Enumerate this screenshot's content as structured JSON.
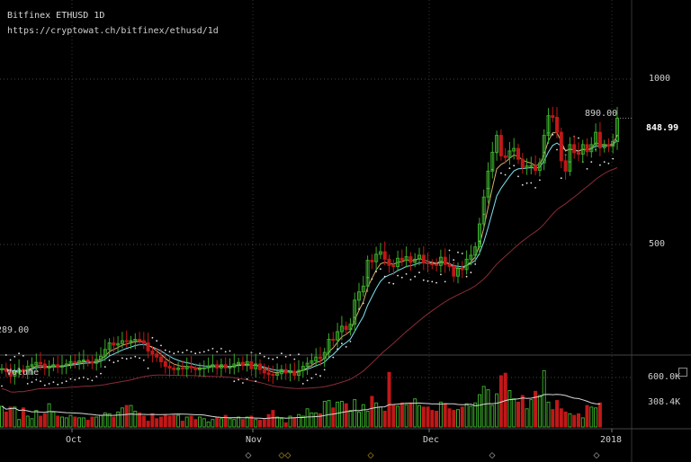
{
  "header": {
    "title": "Bitfinex ETHUSD 1D",
    "url": "https://cryptowat.ch/bitfinex/ethusd/1d"
  },
  "axis": {
    "price_ticks": [
      "1000",
      "500"
    ],
    "volume_label": "Volume",
    "volume_ticks": [
      "600.0K",
      "308.4K"
    ],
    "x_ticks": [
      "Oct",
      "Nov",
      "Dec",
      "2018"
    ],
    "last_price_label": "848.99",
    "high_label": "890.00",
    "low_label": "289.00"
  },
  "colors": {
    "up": "#3aa82a",
    "down": "#c01818",
    "ema_fast": "#d8b070",
    "ema_slow": "#7fe0f0",
    "long_ma": "#8a2c38"
  },
  "chart_data": [
    {
      "type": "candlestick",
      "title": "Bitfinex ETHUSD 1D",
      "scale": "log",
      "y_ticks": [
        500,
        1000
      ],
      "x_ticks": [
        "Oct",
        "Nov",
        "Dec",
        "2018"
      ],
      "grid": true,
      "series_close": [
        297,
        294,
        288,
        292,
        296,
        293,
        300,
        302,
        305,
        303,
        298,
        300,
        302,
        299,
        301,
        303,
        306,
        305,
        307,
        308,
        306,
        304,
        309,
        313,
        322,
        331,
        328,
        330,
        334,
        333,
        334,
        336,
        334,
        331,
        320,
        316,
        312,
        306,
        300,
        298,
        296,
        298,
        297,
        300,
        298,
        296,
        297,
        298,
        300,
        302,
        298,
        302,
        298,
        299,
        303,
        305,
        301,
        306,
        297,
        303,
        296,
        292,
        290,
        289,
        291,
        296,
        292,
        294,
        289,
        295,
        300,
        304,
        307,
        312,
        310,
        318,
        336,
        335,
        347,
        355,
        350,
        358,
        396,
        410,
        420,
        468,
        465,
        480,
        485,
        470,
        458,
        456,
        472,
        468,
        475,
        464,
        470,
        478,
        463,
        461,
        460,
        458,
        474,
        460,
        456,
        438,
        452,
        450,
        470,
        478,
        495,
        545,
        610,
        680,
        736,
        790,
        725,
        720,
        740,
        748,
        715,
        690,
        695,
        696,
        682,
        704,
        790,
        858,
        852,
        800,
        710,
        680,
        760,
        735,
        730,
        760,
        738,
        760,
        800,
        750,
        760,
        755,
        770,
        848.99
      ],
      "high": 890.0,
      "last": 848.99
    },
    {
      "type": "bar",
      "title": "Volume",
      "y_ticks": [
        "600.0K",
        "308.4K"
      ],
      "series": [
        {
          "values": [
            250,
            180,
            240,
            240,
            90,
            230,
            130,
            100,
            200,
            130,
            160,
            280,
            180,
            130,
            120,
            110,
            140,
            120,
            110,
            110,
            80,
            120,
            120,
            140,
            170,
            160,
            120,
            180,
            230,
            260,
            260,
            190,
            170,
            130,
            70,
            160,
            100,
            120,
            140,
            130,
            140,
            140,
            70,
            120,
            130,
            90,
            120,
            100,
            60,
            90,
            120,
            100,
            140,
            100,
            90,
            120,
            90,
            120,
            130,
            90,
            80,
            90,
            150,
            200,
            120,
            100,
            50,
            130,
            110,
            150,
            130,
            220,
            170,
            170,
            160,
            310,
            320,
            230,
            300,
            310,
            280,
            200,
            330,
            180,
            270,
            190,
            370,
            290,
            240,
            190,
            660,
            270,
            250,
            290,
            270,
            290,
            340,
            260,
            240,
            240,
            200,
            190,
            300,
            280,
            220,
            200,
            210,
            240,
            280,
            250,
            290,
            390,
            490,
            450,
            260,
            400,
            620,
            650,
            440,
            340,
            300,
            380,
            220,
            330,
            430,
            380,
            680,
            300,
            210,
            320,
            220,
            180,
            160,
            140,
            160,
            110,
            260,
            240,
            230,
            290
          ]
        }
      ]
    }
  ],
  "markers": [
    "◇",
    "◇",
    "◇",
    "◇",
    "◇",
    "◇"
  ]
}
